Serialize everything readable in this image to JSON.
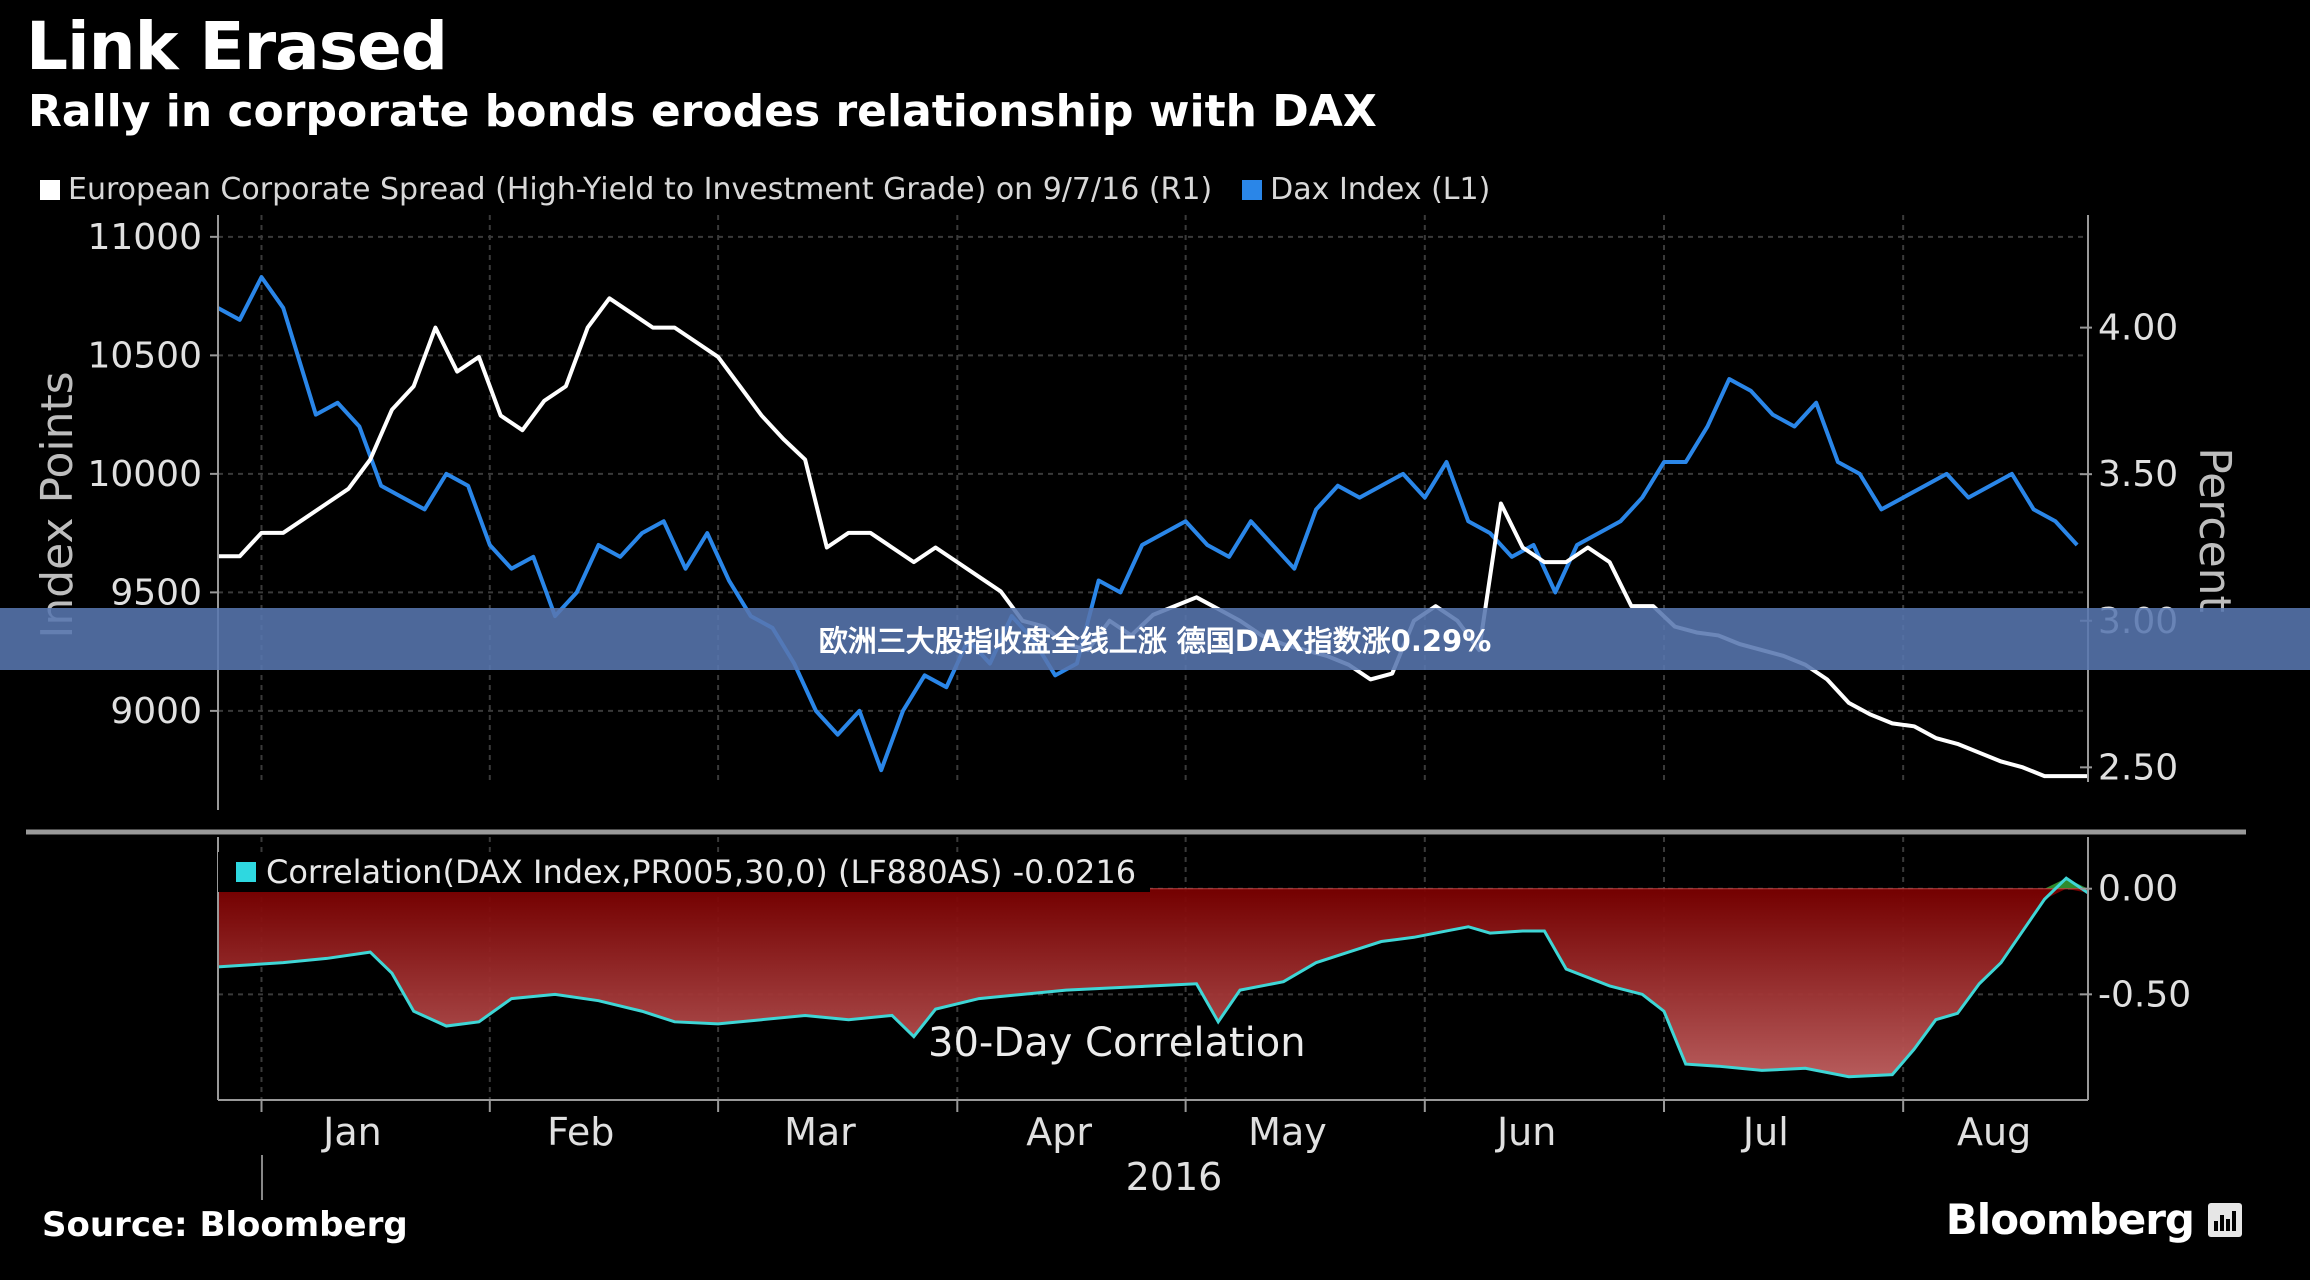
{
  "title": "Link Erased",
  "subtitle": "Rally in corporate bonds erodes relationship with DAX",
  "legend": [
    {
      "label": "European Corporate Spread (High-Yield to Investment Grade) on 9/7/16 (R1)",
      "color": "#ffffff"
    },
    {
      "label": "Dax Index (L1)",
      "color": "#2a86e8"
    }
  ],
  "banner": "欧洲三大股指收盘全线上涨 德国DAX指数涨0.29%",
  "source": "Source: Bloomberg",
  "brand": "Bloomberg",
  "corr_label": "Correlation(DAX Index,PR005,30,0) (LF880AS) -0.0216",
  "corr_title": "30-Day Correlation",
  "chart_data": [
    {
      "type": "line",
      "ylabel": "Index Points",
      "y2label": "Percent",
      "ylim": [
        8700,
        11050
      ],
      "y2lim": [
        2.45,
        4.35
      ],
      "yticks": [
        9000,
        9500,
        10000,
        10500,
        11000
      ],
      "y2ticks": [
        "2.50",
        "3.00",
        "3.50",
        "4.00"
      ],
      "xticks": [
        "Jan",
        "Feb",
        "Mar",
        "Apr",
        "May",
        "Jun",
        "Jul",
        "Aug"
      ],
      "xyear": "2016",
      "x_range": [
        0,
        172
      ],
      "series": [
        {
          "name": "Dax Index (L1)",
          "axis": "left",
          "color": "#2a86e8",
          "values": [
            [
              0,
              10700
            ],
            [
              2,
              10650
            ],
            [
              4,
              10830
            ],
            [
              6,
              10700
            ],
            [
              9,
              10250
            ],
            [
              11,
              10300
            ],
            [
              13,
              10200
            ],
            [
              15,
              9950
            ],
            [
              17,
              9900
            ],
            [
              19,
              9850
            ],
            [
              21,
              10000
            ],
            [
              23,
              9950
            ],
            [
              25,
              9700
            ],
            [
              27,
              9600
            ],
            [
              29,
              9650
            ],
            [
              31,
              9400
            ],
            [
              33,
              9500
            ],
            [
              35,
              9700
            ],
            [
              37,
              9650
            ],
            [
              39,
              9750
            ],
            [
              41,
              9800
            ],
            [
              43,
              9600
            ],
            [
              45,
              9750
            ],
            [
              47,
              9550
            ],
            [
              49,
              9400
            ],
            [
              51,
              9350
            ],
            [
              53,
              9200
            ],
            [
              55,
              9000
            ],
            [
              57,
              8900
            ],
            [
              59,
              9000
            ],
            [
              61,
              8750
            ],
            [
              63,
              9000
            ],
            [
              65,
              9150
            ],
            [
              67,
              9100
            ],
            [
              69,
              9300
            ],
            [
              71,
              9200
            ],
            [
              73,
              9400
            ],
            [
              75,
              9300
            ],
            [
              77,
              9150
            ],
            [
              79,
              9200
            ],
            [
              81,
              9550
            ],
            [
              83,
              9500
            ],
            [
              85,
              9700
            ],
            [
              87,
              9750
            ],
            [
              89,
              9800
            ],
            [
              91,
              9700
            ],
            [
              93,
              9650
            ],
            [
              95,
              9800
            ],
            [
              97,
              9700
            ],
            [
              99,
              9600
            ],
            [
              101,
              9850
            ],
            [
              103,
              9950
            ],
            [
              105,
              9900
            ],
            [
              107,
              9950
            ],
            [
              109,
              10000
            ],
            [
              111,
              9900
            ],
            [
              113,
              10050
            ],
            [
              115,
              9800
            ],
            [
              117,
              9750
            ],
            [
              119,
              9650
            ],
            [
              121,
              9700
            ],
            [
              123,
              9500
            ],
            [
              125,
              9700
            ],
            [
              127,
              9750
            ],
            [
              129,
              9800
            ],
            [
              131,
              9900
            ],
            [
              133,
              10050
            ],
            [
              135,
              10050
            ],
            [
              137,
              10200
            ],
            [
              139,
              10400
            ],
            [
              141,
              10350
            ],
            [
              143,
              10250
            ],
            [
              145,
              10200
            ],
            [
              147,
              10300
            ],
            [
              149,
              10050
            ],
            [
              151,
              10000
            ],
            [
              153,
              9850
            ],
            [
              155,
              9900
            ],
            [
              157,
              9950
            ],
            [
              159,
              10000
            ],
            [
              161,
              9900
            ],
            [
              163,
              9950
            ],
            [
              165,
              10000
            ],
            [
              167,
              9850
            ],
            [
              169,
              9800
            ],
            [
              171,
              9700
            ]
          ]
        },
        {
          "name": "European Corporate Spread (High-Yield to Investment Grade) on 9/7/16 (R1)",
          "axis": "right",
          "color": "#ffffff",
          "values": [
            [
              0,
              3.22
            ],
            [
              2,
              3.22
            ],
            [
              4,
              3.3
            ],
            [
              6,
              3.3
            ],
            [
              8,
              3.35
            ],
            [
              10,
              3.4
            ],
            [
              12,
              3.45
            ],
            [
              14,
              3.55
            ],
            [
              16,
              3.72
            ],
            [
              18,
              3.8
            ],
            [
              20,
              4.0
            ],
            [
              22,
              3.85
            ],
            [
              24,
              3.9
            ],
            [
              26,
              3.7
            ],
            [
              28,
              3.65
            ],
            [
              30,
              3.75
            ],
            [
              32,
              3.8
            ],
            [
              34,
              4.0
            ],
            [
              36,
              4.1
            ],
            [
              38,
              4.05
            ],
            [
              40,
              4.0
            ],
            [
              42,
              4.0
            ],
            [
              44,
              3.95
            ],
            [
              46,
              3.9
            ],
            [
              48,
              3.8
            ],
            [
              50,
              3.7
            ],
            [
              52,
              3.62
            ],
            [
              54,
              3.55
            ],
            [
              56,
              3.25
            ],
            [
              58,
              3.3
            ],
            [
              60,
              3.3
            ],
            [
              62,
              3.25
            ],
            [
              64,
              3.2
            ],
            [
              66,
              3.25
            ],
            [
              68,
              3.2
            ],
            [
              70,
              3.15
            ],
            [
              72,
              3.1
            ],
            [
              74,
              3.0
            ],
            [
              76,
              2.98
            ],
            [
              78,
              2.92
            ],
            [
              80,
              2.9
            ],
            [
              82,
              3.0
            ],
            [
              84,
              2.95
            ],
            [
              86,
              3.02
            ],
            [
              88,
              3.05
            ],
            [
              90,
              3.08
            ],
            [
              92,
              3.04
            ],
            [
              94,
              3.0
            ],
            [
              96,
              2.95
            ],
            [
              98,
              2.92
            ],
            [
              100,
              2.9
            ],
            [
              102,
              2.88
            ],
            [
              104,
              2.85
            ],
            [
              106,
              2.8
            ],
            [
              108,
              2.82
            ],
            [
              110,
              3.0
            ],
            [
              112,
              3.05
            ],
            [
              114,
              3.0
            ],
            [
              116,
              2.9
            ],
            [
              118,
              3.4
            ],
            [
              120,
              3.25
            ],
            [
              122,
              3.2
            ],
            [
              124,
              3.2
            ],
            [
              126,
              3.25
            ],
            [
              128,
              3.2
            ],
            [
              130,
              3.05
            ],
            [
              132,
              3.05
            ],
            [
              134,
              2.98
            ],
            [
              136,
              2.96
            ],
            [
              138,
              2.95
            ],
            [
              140,
              2.92
            ],
            [
              142,
              2.9
            ],
            [
              144,
              2.88
            ],
            [
              146,
              2.85
            ],
            [
              148,
              2.8
            ],
            [
              150,
              2.72
            ],
            [
              152,
              2.68
            ],
            [
              154,
              2.65
            ],
            [
              156,
              2.64
            ],
            [
              158,
              2.6
            ],
            [
              160,
              2.58
            ],
            [
              162,
              2.55
            ],
            [
              164,
              2.52
            ],
            [
              166,
              2.5
            ],
            [
              168,
              2.47
            ],
            [
              170,
              2.47
            ],
            [
              172,
              2.47
            ]
          ]
        }
      ]
    },
    {
      "type": "area",
      "name": "30-Day Correlation",
      "ylim": [
        -1.0,
        0.15
      ],
      "yticks": [
        "0.00",
        "-0.50"
      ],
      "series": [
        {
          "name": "Correlation(DAX Index,PR005,30,0) (LF880AS) -0.0216",
          "values": [
            [
              0,
              -0.37
            ],
            [
              6,
              -0.35
            ],
            [
              10,
              -0.33
            ],
            [
              14,
              -0.3
            ],
            [
              16,
              -0.4
            ],
            [
              18,
              -0.58
            ],
            [
              21,
              -0.65
            ],
            [
              24,
              -0.63
            ],
            [
              27,
              -0.52
            ],
            [
              31,
              -0.5
            ],
            [
              35,
              -0.53
            ],
            [
              39,
              -0.58
            ],
            [
              42,
              -0.63
            ],
            [
              46,
              -0.64
            ],
            [
              50,
              -0.62
            ],
            [
              54,
              -0.6
            ],
            [
              58,
              -0.62
            ],
            [
              62,
              -0.6
            ],
            [
              64,
              -0.7
            ],
            [
              66,
              -0.57
            ],
            [
              70,
              -0.52
            ],
            [
              74,
              -0.5
            ],
            [
              78,
              -0.48
            ],
            [
              82,
              -0.47
            ],
            [
              86,
              -0.46
            ],
            [
              90,
              -0.45
            ],
            [
              92,
              -0.63
            ],
            [
              94,
              -0.48
            ],
            [
              98,
              -0.44
            ],
            [
              101,
              -0.35
            ],
            [
              104,
              -0.3
            ],
            [
              107,
              -0.25
            ],
            [
              110,
              -0.23
            ],
            [
              113,
              -0.2
            ],
            [
              115,
              -0.18
            ],
            [
              117,
              -0.21
            ],
            [
              120,
              -0.2
            ],
            [
              122,
              -0.2
            ],
            [
              124,
              -0.38
            ],
            [
              128,
              -0.46
            ],
            [
              131,
              -0.5
            ],
            [
              133,
              -0.58
            ],
            [
              135,
              -0.83
            ],
            [
              138,
              -0.84
            ],
            [
              142,
              -0.86
            ],
            [
              146,
              -0.85
            ],
            [
              150,
              -0.89
            ],
            [
              154,
              -0.88
            ],
            [
              156,
              -0.76
            ],
            [
              158,
              -0.62
            ],
            [
              160,
              -0.59
            ],
            [
              162,
              -0.45
            ],
            [
              164,
              -0.35
            ],
            [
              166,
              -0.2
            ],
            [
              168,
              -0.05
            ],
            [
              170,
              0.05
            ],
            [
              172,
              -0.02
            ]
          ]
        }
      ]
    }
  ]
}
